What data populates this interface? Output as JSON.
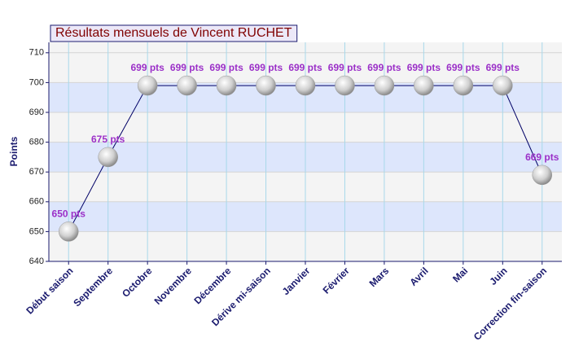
{
  "chart_data": {
    "type": "line",
    "title": "Résultats mensuels de Vincent RUCHET",
    "y_label": "Points",
    "categories": [
      "Début saison",
      "Septembre",
      "Octobre",
      "Novembre",
      "Décembre",
      "Dérive mi-saison",
      "Janvier",
      "Février",
      "Mars",
      "Avril",
      "Mai",
      "Juin",
      "Correction fin-saison"
    ],
    "values": [
      650,
      675,
      699,
      699,
      699,
      699,
      699,
      699,
      699,
      699,
      699,
      699,
      669
    ],
    "value_labels": [
      "650 pts",
      "675 pts",
      "699 pts",
      "699 pts",
      "699 pts",
      "699 pts",
      "699 pts",
      "699 pts",
      "699 pts",
      "699 pts",
      "699 pts",
      "699 pts",
      "669 pts"
    ],
    "color": "#000066",
    "ylim": [
      640,
      713.5
    ],
    "yticks": [
      640,
      650,
      660,
      670,
      680,
      690,
      700,
      710
    ],
    "grid": true
  }
}
